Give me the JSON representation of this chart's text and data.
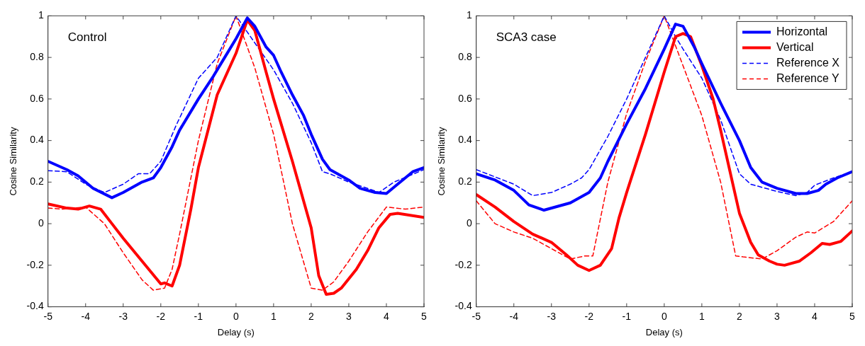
{
  "chart_data": [
    {
      "type": "line",
      "xlabel": "Delay (s)",
      "ylabel": "Cosine Similarity",
      "annotations": [
        "Control"
      ],
      "xlim": [
        -5,
        5
      ],
      "xticks": [
        -5,
        -4,
        -3,
        -2,
        -1,
        0,
        1,
        2,
        3,
        4,
        5
      ],
      "ylim": [
        -0.4,
        1
      ],
      "yticks": [
        -0.4,
        -0.2,
        0,
        0.2,
        0.4,
        0.6,
        0.8,
        1
      ],
      "grid": false,
      "legend": false,
      "marker": "none",
      "series": [
        {
          "color": "#0000ff",
          "line_style": "solid",
          "x": [
            -5,
            -4.5,
            -4.2,
            -3.8,
            -3.3,
            -3,
            -2.5,
            -2.2,
            -2,
            -1.7,
            -1.5,
            -1,
            -0.6,
            -0.3,
            0,
            0.3,
            0.5,
            0.8,
            1,
            1.2,
            1.5,
            1.8,
            2,
            2.3,
            2.5,
            3,
            3.3,
            3.7,
            4,
            4.3,
            4.7,
            5
          ],
          "values": [
            0.3,
            0.26,
            0.23,
            0.17,
            0.125,
            0.15,
            0.2,
            0.22,
            0.27,
            0.37,
            0.45,
            0.6,
            0.71,
            0.8,
            0.89,
            0.99,
            0.95,
            0.85,
            0.81,
            0.73,
            0.62,
            0.52,
            0.43,
            0.31,
            0.26,
            0.21,
            0.17,
            0.15,
            0.145,
            0.19,
            0.25,
            0.27
          ]
        },
        {
          "color": "#ff0000",
          "line_style": "solid",
          "x": [
            -5,
            -4.5,
            -4.2,
            -3.9,
            -3.6,
            -3.3,
            -3,
            -2.5,
            -2,
            -1.9,
            -1.7,
            -1.5,
            -1.2,
            -1,
            -0.5,
            0,
            0.3,
            0.5,
            0.8,
            1,
            1.5,
            2,
            2.2,
            2.4,
            2.6,
            2.8,
            3.2,
            3.5,
            3.8,
            4.1,
            4.3,
            5
          ],
          "values": [
            0.095,
            0.075,
            0.07,
            0.085,
            0.07,
            0.0,
            -0.07,
            -0.18,
            -0.29,
            -0.285,
            -0.3,
            -0.2,
            0.07,
            0.27,
            0.62,
            0.82,
            0.98,
            0.93,
            0.73,
            0.6,
            0.3,
            -0.02,
            -0.25,
            -0.34,
            -0.335,
            -0.31,
            -0.22,
            -0.13,
            -0.02,
            0.045,
            0.05,
            0.03
          ]
        },
        {
          "color": "#0000ff",
          "line_style": "dashed",
          "x": [
            -5,
            -4.5,
            -4,
            -3.5,
            -3,
            -2.6,
            -2.3,
            -2,
            -1.6,
            -1,
            -0.5,
            0,
            0.5,
            1,
            1.5,
            2,
            2.3,
            2.5,
            3,
            3.5,
            3.8,
            4.2,
            5
          ],
          "values": [
            0.255,
            0.25,
            0.19,
            0.15,
            0.19,
            0.24,
            0.24,
            0.3,
            0.47,
            0.7,
            0.8,
            1.0,
            0.87,
            0.74,
            0.58,
            0.39,
            0.25,
            0.24,
            0.2,
            0.17,
            0.15,
            0.2,
            0.26
          ]
        },
        {
          "color": "#ff0000",
          "line_style": "dashed",
          "x": [
            -5,
            -4.6,
            -4,
            -3.5,
            -3,
            -2.5,
            -2.2,
            -1.9,
            -1.7,
            -1.5,
            -1,
            -0.5,
            0,
            0.5,
            1,
            1.5,
            2,
            2.3,
            2.6,
            3,
            3.5,
            4,
            4.5,
            5
          ],
          "values": [
            0.075,
            0.07,
            0.08,
            0.0,
            -0.14,
            -0.27,
            -0.32,
            -0.31,
            -0.22,
            -0.05,
            0.4,
            0.77,
            1.0,
            0.75,
            0.43,
            0.0,
            -0.31,
            -0.32,
            -0.28,
            -0.18,
            -0.04,
            0.08,
            0.07,
            0.08
          ]
        }
      ]
    },
    {
      "type": "line",
      "xlabel": "Delay (s)",
      "ylabel": "Cosine Similarity",
      "annotations": [
        "SCA3 case"
      ],
      "xlim": [
        -5,
        5
      ],
      "xticks": [
        -5,
        -4,
        -3,
        -2,
        -1,
        0,
        1,
        2,
        3,
        4,
        5
      ],
      "ylim": [
        -0.4,
        1
      ],
      "yticks": [
        -0.4,
        -0.2,
        0,
        0.2,
        0.4,
        0.6,
        0.8,
        1
      ],
      "grid": false,
      "legend": "top right",
      "marker": "none",
      "series": [
        {
          "name": "Horizontal",
          "color": "#0000ff",
          "line_style": "solid",
          "x": [
            -5,
            -4.5,
            -4,
            -3.6,
            -3.2,
            -2.5,
            -2,
            -1.7,
            -1.5,
            -1,
            -0.5,
            0,
            0.3,
            0.5,
            0.8,
            1,
            1.5,
            2,
            2.3,
            2.6,
            3,
            3.5,
            3.8,
            4.1,
            4.3,
            4.6,
            5
          ],
          "values": [
            0.24,
            0.21,
            0.16,
            0.09,
            0.065,
            0.1,
            0.15,
            0.22,
            0.3,
            0.48,
            0.65,
            0.84,
            0.96,
            0.95,
            0.85,
            0.77,
            0.58,
            0.4,
            0.27,
            0.2,
            0.17,
            0.145,
            0.145,
            0.16,
            0.19,
            0.22,
            0.25
          ]
        },
        {
          "name": "Vertical",
          "color": "#ff0000",
          "line_style": "solid",
          "x": [
            -5,
            -4.5,
            -4,
            -3.5,
            -3,
            -2.6,
            -2.3,
            -2,
            -1.7,
            -1.4,
            -1.2,
            -1,
            -0.5,
            0,
            0.3,
            0.5,
            0.7,
            1,
            1.3,
            1.5,
            2,
            2.3,
            2.5,
            2.8,
            3,
            3.2,
            3.6,
            3.9,
            4.2,
            4.4,
            4.7,
            5
          ],
          "values": [
            0.14,
            0.08,
            0.01,
            -0.05,
            -0.09,
            -0.15,
            -0.2,
            -0.225,
            -0.2,
            -0.12,
            0.03,
            0.15,
            0.43,
            0.73,
            0.9,
            0.915,
            0.9,
            0.76,
            0.6,
            0.45,
            0.05,
            -0.09,
            -0.15,
            -0.18,
            -0.195,
            -0.2,
            -0.18,
            -0.14,
            -0.095,
            -0.1,
            -0.085,
            -0.035
          ]
        },
        {
          "name": "Reference X",
          "color": "#0000ff",
          "line_style": "dashed",
          "x": [
            -5,
            -4,
            -3.5,
            -3,
            -2.5,
            -2.2,
            -2,
            -1.5,
            -1,
            -0.5,
            0,
            0.3,
            0.5,
            1,
            1.5,
            2,
            2.3,
            3,
            3.5,
            3.8,
            4,
            4.5,
            5
          ],
          "values": [
            0.26,
            0.19,
            0.135,
            0.15,
            0.19,
            0.22,
            0.26,
            0.42,
            0.6,
            0.8,
            1.0,
            0.9,
            0.84,
            0.7,
            0.5,
            0.24,
            0.19,
            0.155,
            0.135,
            0.15,
            0.185,
            0.22,
            0.25
          ]
        },
        {
          "name": "Reference Y",
          "color": "#ff0000",
          "line_style": "dashed",
          "x": [
            -5,
            -4.5,
            -4,
            -3.5,
            -3,
            -2.5,
            -2.1,
            -1.9,
            -1.5,
            -1,
            -0.5,
            0,
            0.5,
            1,
            1.5,
            1.9,
            2.1,
            2.6,
            3,
            3.5,
            3.8,
            4,
            4.5,
            5
          ],
          "values": [
            0.11,
            0.0,
            -0.04,
            -0.07,
            -0.12,
            -0.17,
            -0.155,
            -0.155,
            0.2,
            0.53,
            0.78,
            1.0,
            0.76,
            0.52,
            0.2,
            -0.155,
            -0.16,
            -0.17,
            -0.13,
            -0.065,
            -0.04,
            -0.045,
            0.01,
            0.11
          ]
        }
      ]
    }
  ]
}
